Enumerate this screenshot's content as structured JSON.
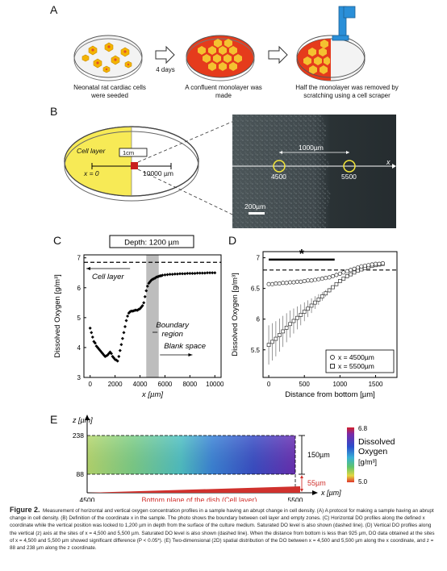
{
  "panels": {
    "a": "A",
    "b": "B",
    "c": "C",
    "d": "D",
    "e": "E"
  },
  "panel_a": {
    "step1": "Neonatal rat cardiac cells were seeded",
    "arrow_label": "4 days",
    "step2": "A confluent monolayer was made",
    "step3": "Half the monolayer was removed by scratching using a cell scraper"
  },
  "panel_b": {
    "cell_layer": "Cell layer",
    "x0": "x = 0",
    "scale_box": "1cm",
    "x_max": "10000 µm",
    "photo_distance": "1000µm",
    "photo_axis": "x",
    "site1": "4500",
    "site2": "5500",
    "scale_bar": "200µm"
  },
  "chart_data": [
    {
      "id": "C",
      "type": "scatter",
      "title": "Depth: 1200 µm",
      "xlabel": "x [µm]",
      "ylabel": "Dissolved Oxygen [g/m³]",
      "xlim": [
        -500,
        10500
      ],
      "ylim": [
        3.0,
        7.1
      ],
      "xticks": [
        "0",
        "2000",
        "4000",
        "6000",
        "8000",
        "10000"
      ],
      "yticks": [
        "3",
        "4",
        "5",
        "6",
        "7"
      ],
      "saturated_level": 6.85,
      "boundary_region": [
        4500,
        5500
      ],
      "annotations": [
        "Cell layer",
        "Boundary region",
        "Blank space"
      ],
      "x": [
        0,
        100,
        200,
        300,
        400,
        500,
        600,
        700,
        800,
        900,
        1000,
        1100,
        1200,
        1300,
        1400,
        1500,
        1600,
        1700,
        1800,
        1900,
        2000,
        2100,
        2200,
        2300,
        2400,
        2500,
        2600,
        2700,
        2800,
        2900,
        3000,
        3100,
        3200,
        3300,
        3400,
        3500,
        3600,
        3700,
        3800,
        3900,
        4000,
        4100,
        4200,
        4300,
        4400,
        4500,
        4600,
        4700,
        4800,
        4900,
        5000,
        5100,
        5200,
        5300,
        5400,
        5500,
        5600,
        5700,
        5800,
        6000,
        6200,
        6400,
        6600,
        6800,
        7000,
        7200,
        7400,
        7600,
        7800,
        8000,
        8200,
        8400,
        8600,
        8800,
        9000,
        9200,
        9400,
        9600,
        9800,
        10000
      ],
      "y": [
        4.65,
        4.5,
        4.35,
        4.2,
        4.15,
        4.05,
        4.0,
        3.95,
        3.9,
        3.85,
        3.8,
        3.75,
        3.7,
        3.72,
        3.75,
        3.8,
        3.85,
        3.8,
        3.7,
        3.65,
        3.6,
        3.58,
        3.55,
        3.7,
        3.9,
        4.1,
        4.3,
        4.5,
        4.7,
        4.9,
        5.05,
        5.15,
        5.2,
        5.22,
        5.22,
        5.23,
        5.25,
        5.25,
        5.25,
        5.28,
        5.3,
        5.35,
        5.4,
        5.5,
        5.7,
        5.9,
        6.05,
        6.15,
        6.2,
        6.25,
        6.28,
        6.3,
        6.32,
        6.35,
        6.37,
        6.38,
        6.4,
        6.4,
        6.42,
        6.43,
        6.44,
        6.45,
        6.45,
        6.46,
        6.46,
        6.47,
        6.47,
        6.47,
        6.48,
        6.48,
        6.48,
        6.48,
        6.49,
        6.49,
        6.49,
        6.49,
        6.5,
        6.5,
        6.5,
        6.5
      ]
    },
    {
      "id": "D",
      "type": "scatter",
      "xlabel": "Distance from bottom [µm]",
      "ylabel": "Dissolved Oxygen [g/m³]",
      "xlim": [
        -80,
        1800
      ],
      "ylim": [
        5.05,
        7.1
      ],
      "xticks": [
        "0",
        "500",
        "1000",
        "1500"
      ],
      "yticks": [
        "5.5",
        "6",
        "6.5",
        "7"
      ],
      "saturated_level": 6.8,
      "significance": "*",
      "significance_range": [
        0,
        925
      ],
      "series": [
        {
          "name": "x = 4500µm",
          "marker": "circle",
          "x": [
            0,
            50,
            100,
            150,
            200,
            250,
            300,
            350,
            400,
            450,
            500,
            550,
            600,
            650,
            700,
            750,
            800,
            850,
            900,
            950,
            1000,
            1050,
            1100,
            1150,
            1200,
            1250,
            1300,
            1350,
            1400,
            1450,
            1500,
            1550,
            1600
          ],
          "y": [
            6.57,
            6.57,
            6.58,
            6.58,
            6.59,
            6.59,
            6.6,
            6.6,
            6.61,
            6.61,
            6.62,
            6.63,
            6.63,
            6.64,
            6.65,
            6.66,
            6.67,
            6.68,
            6.7,
            6.72,
            6.74,
            6.76,
            6.78,
            6.8,
            6.82,
            6.84,
            6.86,
            6.87,
            6.88,
            6.89,
            6.9,
            6.9,
            6.91
          ]
        },
        {
          "name": "x = 5500µm",
          "marker": "square",
          "x": [
            0,
            50,
            100,
            150,
            200,
            250,
            300,
            350,
            400,
            450,
            500,
            550,
            600,
            650,
            700,
            750,
            800,
            850,
            900,
            950,
            1000,
            1050,
            1100,
            1150,
            1200,
            1250,
            1300,
            1350,
            1400,
            1450,
            1500,
            1550,
            1600
          ],
          "y": [
            5.58,
            5.63,
            5.68,
            5.74,
            5.8,
            5.86,
            5.92,
            5.97,
            6.02,
            6.07,
            6.12,
            6.17,
            6.22,
            6.27,
            6.32,
            6.37,
            6.42,
            6.47,
            6.52,
            6.57,
            6.62,
            6.66,
            6.7,
            6.73,
            6.76,
            6.79,
            6.81,
            6.83,
            6.85,
            6.87,
            6.88,
            6.89,
            6.9
          ]
        }
      ]
    },
    {
      "id": "E",
      "type": "heatmap",
      "xlabel": "x [µm]",
      "ylabel": "z [µm]",
      "xticks": [
        "4500",
        "5500"
      ],
      "yticks": [
        "238",
        "88"
      ],
      "colorbar_label": "Dissolved Oxygen [g/m³]",
      "colorbar_range": [
        5.0,
        6.8
      ],
      "colorbar_ticks": [
        "6.8",
        "5.0"
      ],
      "span_label": "150µm",
      "gap_label": "55µm",
      "bottom_label": "Bottom plane of the dish (Cell layer)"
    }
  ],
  "caption": {
    "label": "Figure 2.",
    "text": "Measurement of horizontal and vertical oxygen concentration profiles in a sample having an abrupt change in cell density. (A) A protocol for making a sample having an abrupt change in cell density. (B) Definition of the coordinate x in the sample. The photo shows the boundary between cell layer and empty zones. (C) Horizontal DO profiles along the defined x coordinate while the vertical position was locked to 1,200 µm in depth from the surface of the culture medium. Saturated DO level is also shown (dashed line). (D) Vertical DO profiles along the vertical (z) axis at the sites of x = 4,500 and 5,500 µm. Saturated DO level is also shown (dashed line). When the distance from bottom is less than 925 µm, DO data obtained at the sites of x = 4,500 and 5,500 µm showed significant difference (P < 0.05*). (E) Two-dimensional (2D) spatial distribution of the DO between x = 4,500 and 5,500 µm along the x coordinate, and z = 88 and 238 µm along the z coordinate."
  }
}
